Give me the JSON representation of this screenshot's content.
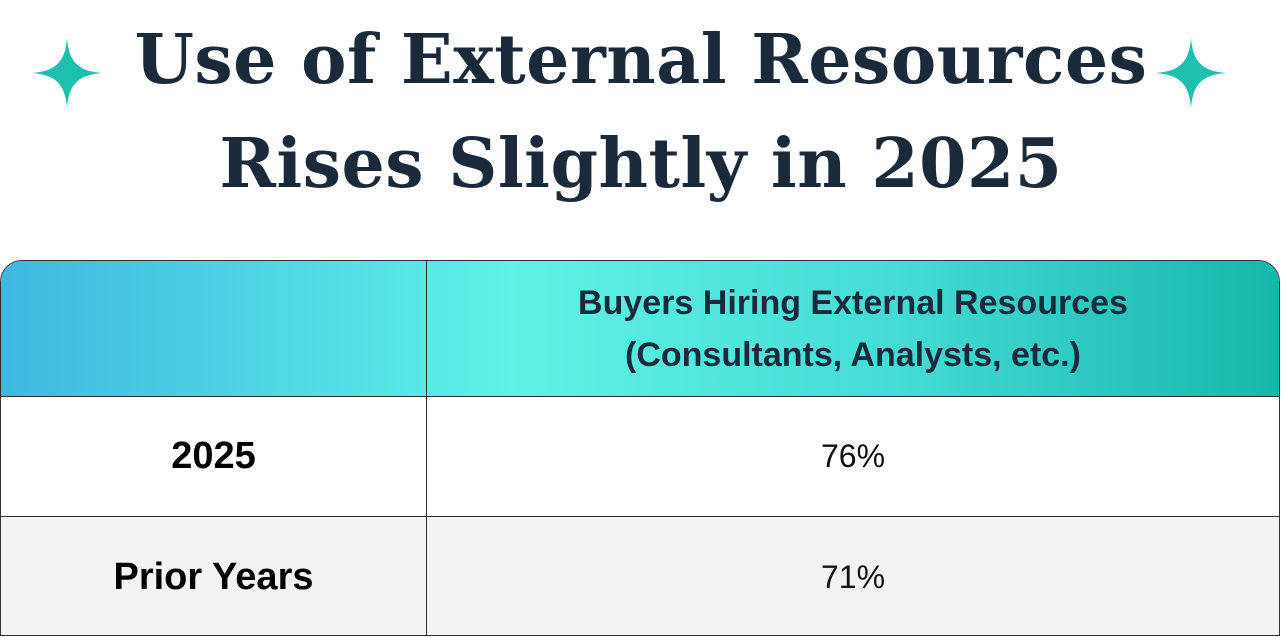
{
  "title": {
    "line1": "Use of External Resources",
    "line2": "Rises Slightly in 2025"
  },
  "colors": {
    "accent": "#1fbfb0",
    "title_text": "#1b2a3b",
    "header_gradient_start": "#3fb8e0",
    "header_gradient_end": "#16b7ab",
    "alt_row": "#f3f3f3"
  },
  "icons": {
    "left": "sparkle-icon",
    "right": "sparkle-icon"
  },
  "chart_data": {
    "type": "table",
    "title": "Use of External Resources Rises Slightly in 2025",
    "columns": [
      "",
      "Buyers Hiring External Resources (Consultants, Analysts, etc.)"
    ],
    "header_lines": [
      "Buyers Hiring External Resources",
      "(Consultants, Analysts, etc.)"
    ],
    "rows": [
      {
        "label": "2025",
        "value": "76%"
      },
      {
        "label": "Prior Years",
        "value": "71%"
      }
    ]
  }
}
